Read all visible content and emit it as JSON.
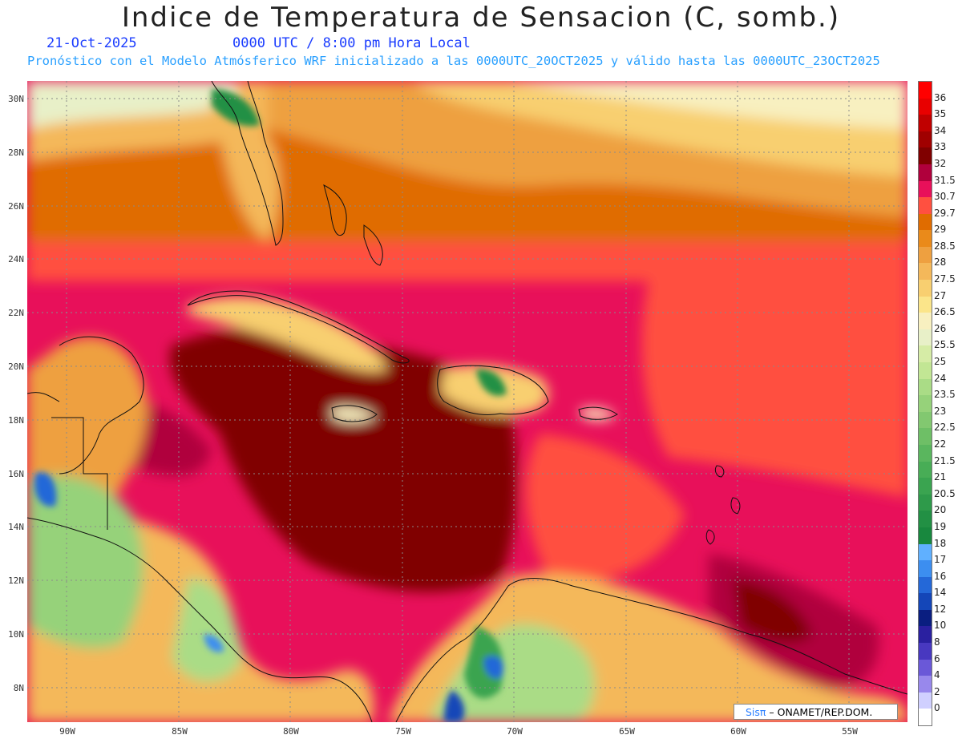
{
  "title": "Indice de Temperatura de Sensacion (C, somb.)",
  "date": "21-Oct-2025",
  "time": "0000 UTC / 8:00 pm Hora Local",
  "forecast": "Pronóstico con el Modelo Atmósferico WRF inicializado a las 0000UTC_20OCT2025 y válido hasta las  0000UTC_23OCT2025",
  "credit": {
    "brand": "Sisπ",
    "text": " – ONAMET/REP.DOM."
  },
  "lat_labels": [
    "30N",
    "28N",
    "26N",
    "24N",
    "22N",
    "20N",
    "18N",
    "16N",
    "14N",
    "12N",
    "10N",
    "8N"
  ],
  "lon_labels": [
    "90W",
    "85W",
    "80W",
    "75W",
    "70W",
    "65W",
    "60W",
    "55W"
  ],
  "legend": [
    {
      "label": "36",
      "color": "#ff0000"
    },
    {
      "label": "35",
      "color": "#e80000"
    },
    {
      "label": "34",
      "color": "#c00000"
    },
    {
      "label": "33",
      "color": "#a00000"
    },
    {
      "label": "32",
      "color": "#800000"
    },
    {
      "label": "31.5",
      "color": "#b0003c"
    },
    {
      "label": "30.7",
      "color": "#e8105a"
    },
    {
      "label": "29.7",
      "color": "#ff5040"
    },
    {
      "label": "29",
      "color": "#e06c00"
    },
    {
      "label": "28.5",
      "color": "#ea8a1a"
    },
    {
      "label": "28",
      "color": "#eea040"
    },
    {
      "label": "27.5",
      "color": "#f4b85a"
    },
    {
      "label": "27",
      "color": "#f8cf70"
    },
    {
      "label": "26.5",
      "color": "#fbe58a"
    },
    {
      "label": "26",
      "color": "#f8f0c0"
    },
    {
      "label": "25.5",
      "color": "#e8f0c8"
    },
    {
      "label": "25",
      "color": "#d6eca6"
    },
    {
      "label": "24",
      "color": "#c2e694"
    },
    {
      "label": "23.5",
      "color": "#aadc86"
    },
    {
      "label": "23",
      "color": "#96d27a"
    },
    {
      "label": "22.5",
      "color": "#82c870"
    },
    {
      "label": "22",
      "color": "#6ebf66"
    },
    {
      "label": "21.5",
      "color": "#5ab65e"
    },
    {
      "label": "21",
      "color": "#48ad56"
    },
    {
      "label": "20.5",
      "color": "#3aa450"
    },
    {
      "label": "20",
      "color": "#2e9a4a"
    },
    {
      "label": "19",
      "color": "#229044"
    },
    {
      "label": "18",
      "color": "#18883e"
    },
    {
      "label": "17",
      "color": "#60b0ff"
    },
    {
      "label": "16",
      "color": "#3c8ef0"
    },
    {
      "label": "14",
      "color": "#2468d8"
    },
    {
      "label": "12",
      "color": "#1446b8"
    },
    {
      "label": "10",
      "color": "#0a1e80"
    },
    {
      "label": "8",
      "color": "#2a20a0"
    },
    {
      "label": "6",
      "color": "#4838c0"
    },
    {
      "label": "4",
      "color": "#6a58d8"
    },
    {
      "label": "2",
      "color": "#9888ec"
    },
    {
      "label": "0",
      "color": "#d0d0ff"
    },
    {
      "label": "",
      "color": "#ffffff"
    }
  ]
}
